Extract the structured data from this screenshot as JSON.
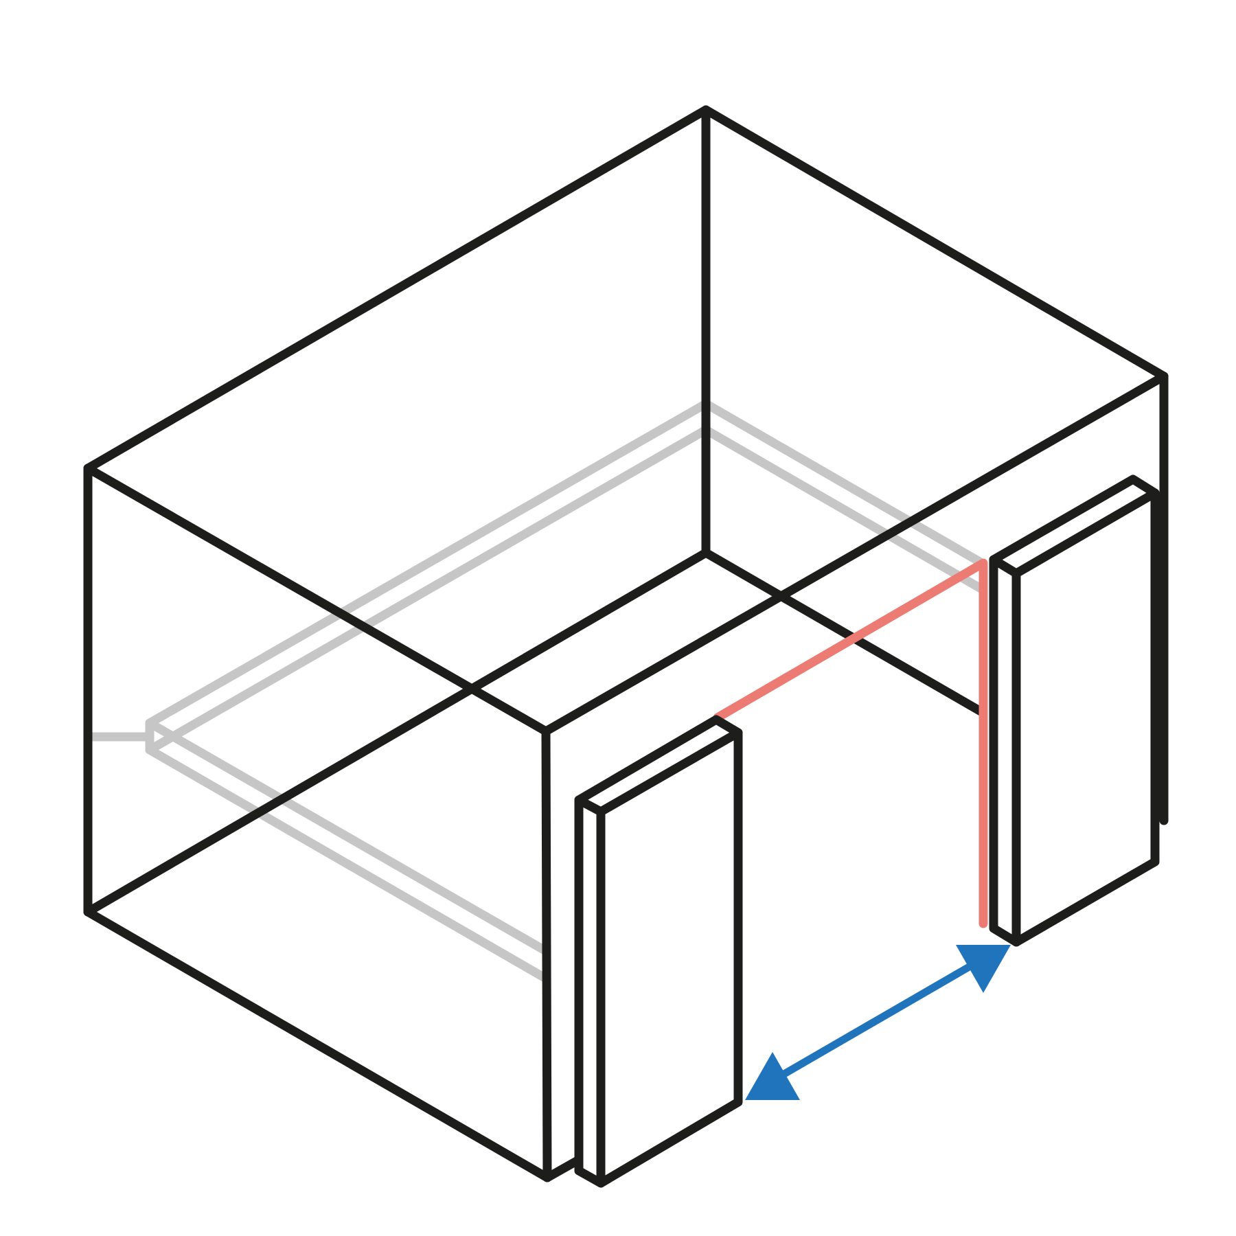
{
  "diagram": {
    "description_visible_text": "",
    "colors": {
      "outline": "#1d1d1b",
      "hidden_edges": "#c6c6c6",
      "highlight_edge": "#ec7b74",
      "arrow": "#1f74bb",
      "background": "#ffffff"
    },
    "elements": [
      "room-box",
      "hidden-inner-frame",
      "front-panel",
      "back-panel",
      "highlight-edge",
      "double-arrow"
    ]
  }
}
